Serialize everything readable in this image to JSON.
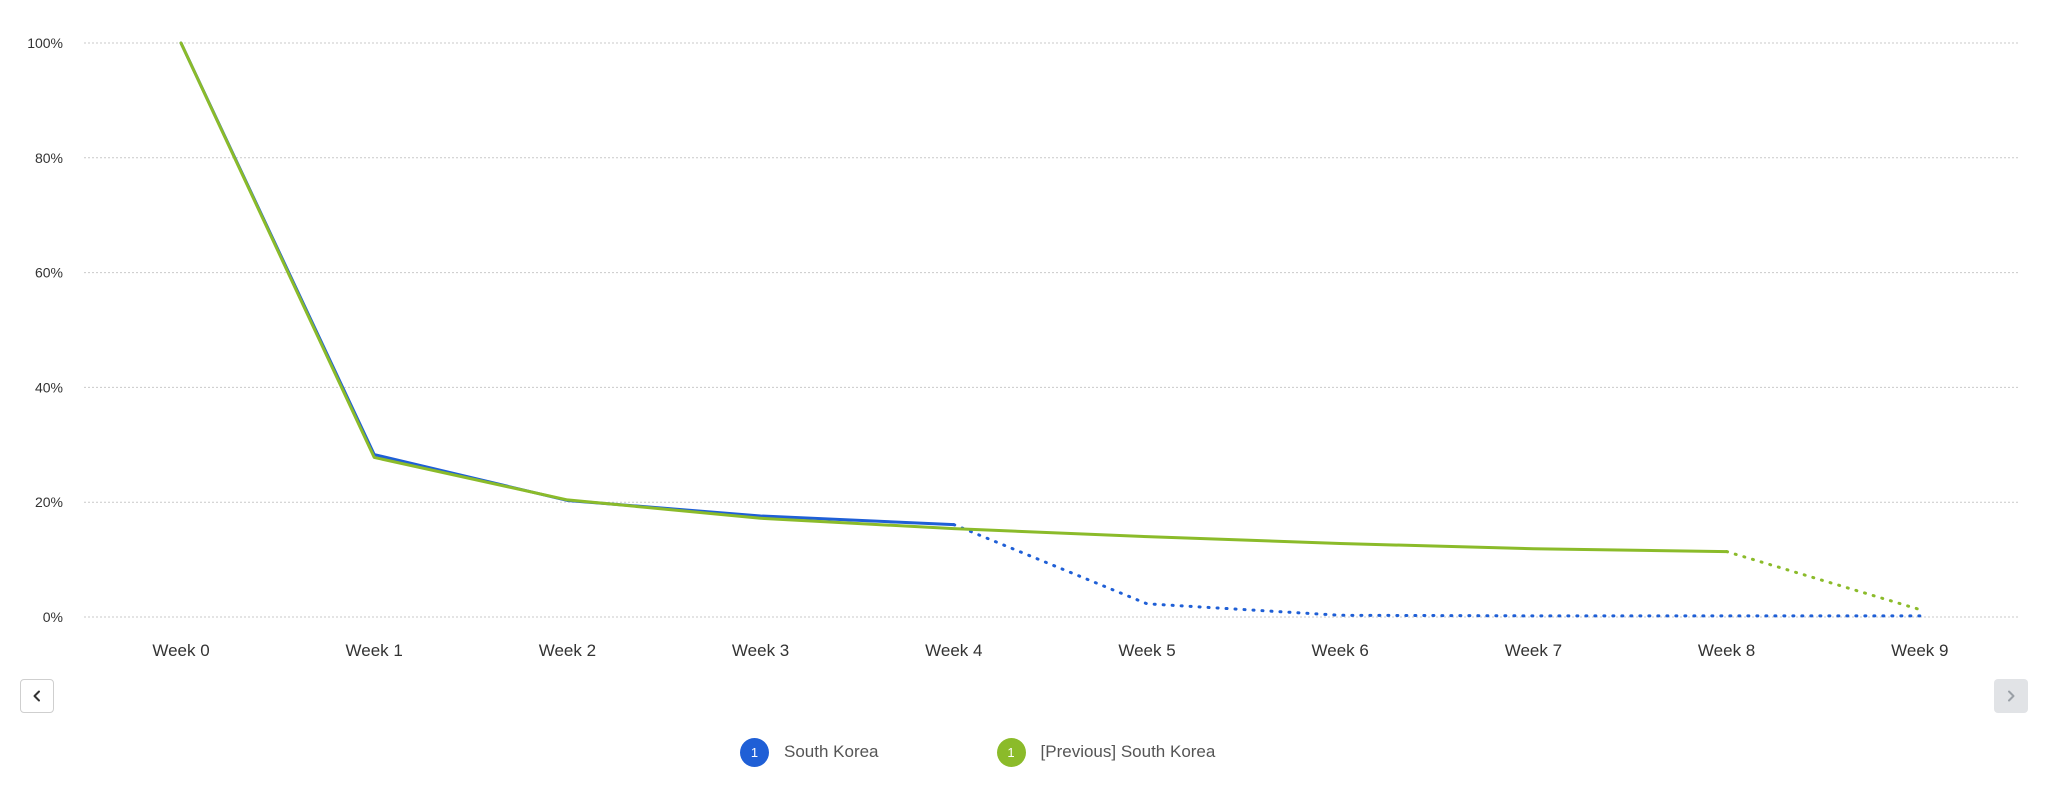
{
  "chart_data": {
    "type": "line",
    "categories": [
      "Week 0",
      "Week 1",
      "Week 2",
      "Week 3",
      "Week 4",
      "Week 5",
      "Week 6",
      "Week 7",
      "Week 8",
      "Week 9"
    ],
    "y_ticks": [
      "0%",
      "20%",
      "40%",
      "60%",
      "80%",
      "100%"
    ],
    "ylim": [
      0,
      100
    ],
    "grid": true,
    "legend_position": "bottom-center",
    "series": [
      {
        "name": "South Korea",
        "badge": "1",
        "color": "#1f5fd6",
        "solid": [
          100,
          28.3,
          20.3,
          17.6,
          16.1
        ],
        "projected": [
          null,
          null,
          null,
          null,
          16.1,
          2.3,
          0.3,
          0.2,
          0.2,
          0.2
        ]
      },
      {
        "name": "[Previous] South Korea",
        "badge": "1",
        "color": "#8bbb2a",
        "solid": [
          100,
          27.8,
          20.4,
          17.2,
          15.4,
          14.0,
          12.8,
          11.9,
          11.4
        ],
        "projected": [
          null,
          null,
          null,
          null,
          null,
          null,
          null,
          null,
          11.4,
          1.3
        ]
      }
    ]
  },
  "nav": {
    "prev_icon": "chevron-left-icon",
    "next_icon": "chevron-right-icon"
  }
}
